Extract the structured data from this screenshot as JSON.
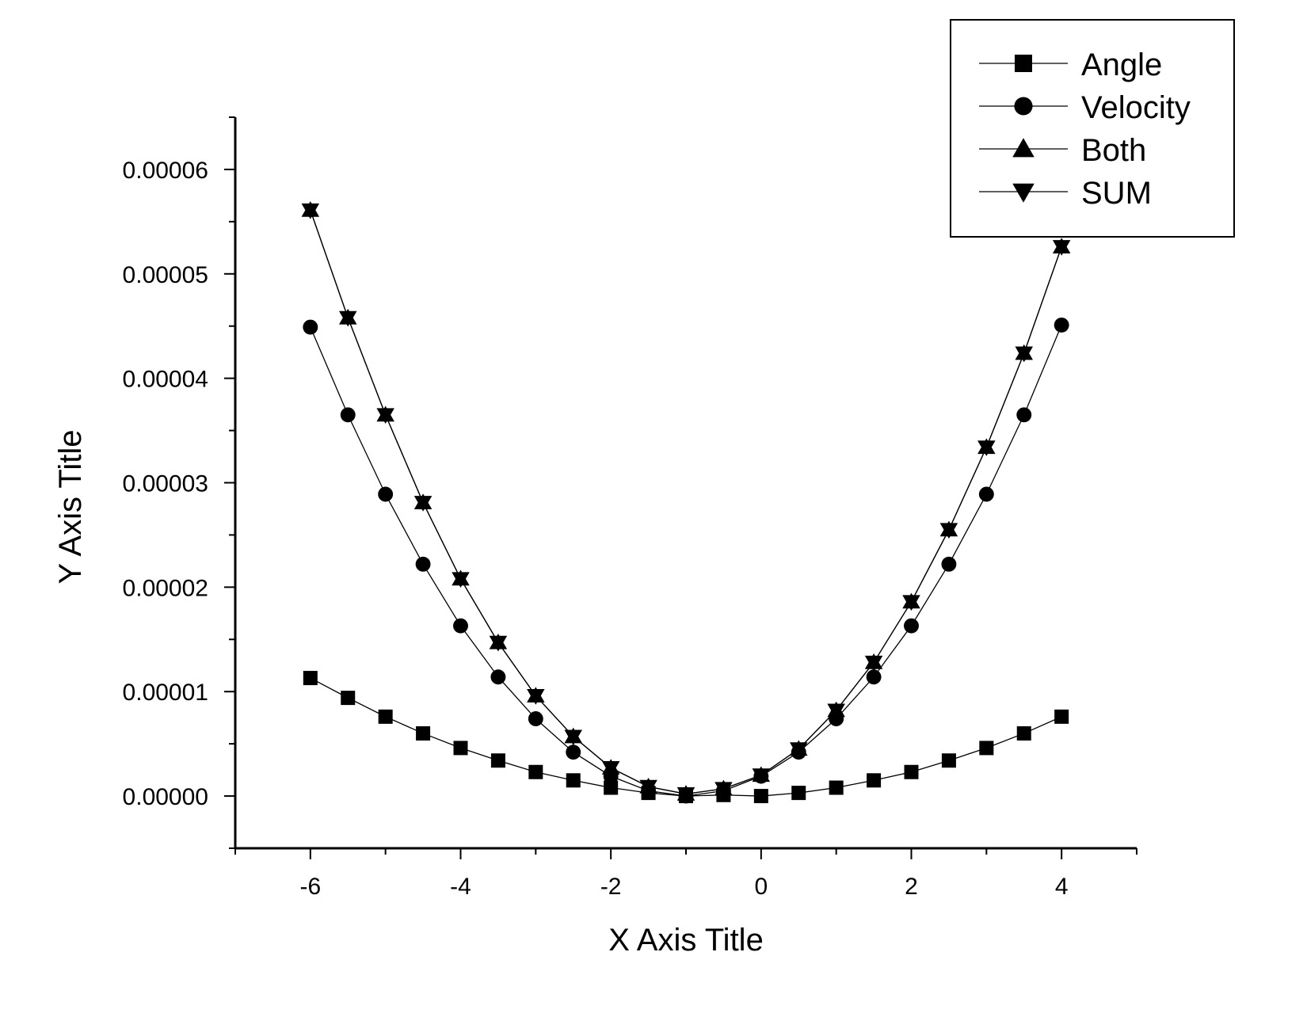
{
  "chart_data": {
    "type": "line",
    "xlabel": "X Axis Title",
    "ylabel": "Y Axis Title",
    "xlim": [
      -7,
      5
    ],
    "ylim": [
      -5e-06,
      6.5e-05
    ],
    "x_ticks": [
      -6,
      -4,
      -2,
      0,
      2,
      4
    ],
    "x_tick_labels": [
      "-6",
      "-4",
      "-2",
      "0",
      "2",
      "4"
    ],
    "y_ticks": [
      0,
      1e-05,
      2e-05,
      3e-05,
      4e-05,
      5e-05,
      6e-05
    ],
    "y_tick_labels": [
      "0.00000",
      "0.00001",
      "0.00002",
      "0.00003",
      "0.00004",
      "0.00005",
      "0.00006"
    ],
    "grid": false,
    "legend_position": "top-right",
    "x": [
      -6,
      -5.5,
      -5,
      -4.5,
      -4,
      -3.5,
      -3,
      -2.5,
      -2,
      -1.5,
      -1,
      -0.5,
      0,
      0.5,
      1,
      1.5,
      2,
      2.5,
      3,
      3.5,
      4
    ],
    "series": [
      {
        "name": "Angle",
        "marker": "square",
        "values": [
          1.13e-05,
          9.4e-06,
          7.6e-06,
          6e-06,
          4.6e-06,
          3.4e-06,
          2.3e-06,
          1.5e-06,
          8e-07,
          3e-07,
          0.0,
          1e-07,
          0.0,
          3e-07,
          8e-07,
          1.5e-06,
          2.3e-06,
          3.4e-06,
          4.6e-06,
          6e-06,
          7.6e-06
        ]
      },
      {
        "name": "Velocity",
        "marker": "circle",
        "values": [
          4.49e-05,
          3.65e-05,
          2.89e-05,
          2.22e-05,
          1.63e-05,
          1.14e-05,
          7.4e-06,
          4.2e-06,
          1.9e-06,
          5e-07,
          0.0,
          5e-07,
          1.9e-06,
          4.2e-06,
          7.4e-06,
          1.14e-05,
          1.63e-05,
          2.22e-05,
          2.89e-05,
          3.65e-05,
          4.51e-05
        ]
      },
      {
        "name": "Both",
        "marker": "triangle-up",
        "values": [
          5.61e-05,
          4.58e-05,
          3.65e-05,
          2.81e-05,
          2.08e-05,
          1.47e-05,
          9.6e-06,
          5.7e-06,
          2.7e-06,
          9e-07,
          2e-07,
          7e-07,
          2e-06,
          4.5e-06,
          8.2e-06,
          1.28e-05,
          1.86e-05,
          2.55e-05,
          3.34e-05,
          4.24e-05,
          5.26e-05
        ]
      },
      {
        "name": "SUM",
        "marker": "triangle-down",
        "values": [
          5.61e-05,
          4.58e-05,
          3.65e-05,
          2.81e-05,
          2.08e-05,
          1.47e-05,
          9.6e-06,
          5.7e-06,
          2.7e-06,
          9e-07,
          2e-07,
          7e-07,
          2e-06,
          4.5e-06,
          8.2e-06,
          1.28e-05,
          1.86e-05,
          2.55e-05,
          3.34e-05,
          4.24e-05,
          5.26e-05
        ]
      }
    ]
  }
}
